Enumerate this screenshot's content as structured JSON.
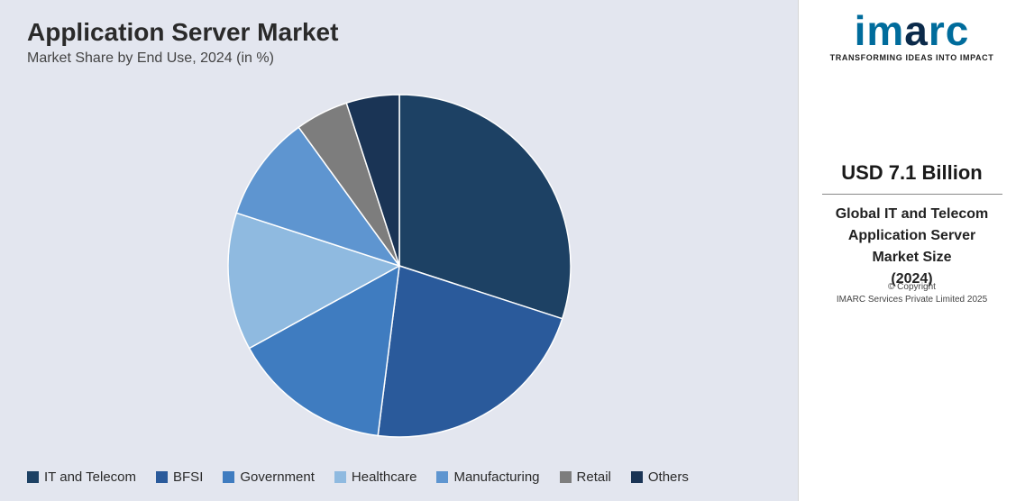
{
  "header": {
    "title": "Application Server Market",
    "subtitle": "Market Share by End Use, 2024 (in %)"
  },
  "chart": {
    "type": "pie",
    "background_color": "#e3e6ef",
    "radius": 190,
    "stroke_color": "#ffffff",
    "stroke_width": 1.5,
    "start_angle_deg": 0,
    "slices": [
      {
        "label": "IT and Telecom",
        "value": 30,
        "color": "#1d4164"
      },
      {
        "label": "BFSI",
        "value": 22,
        "color": "#2a5a9b"
      },
      {
        "label": "Government",
        "value": 15,
        "color": "#3f7cc0"
      },
      {
        "label": "Healthcare",
        "value": 13,
        "color": "#8fbae0"
      },
      {
        "label": "Manufacturing",
        "value": 10,
        "color": "#5e95d0"
      },
      {
        "label": "Retail",
        "value": 5,
        "color": "#7d7d7d"
      },
      {
        "label": "Others",
        "value": 5,
        "color": "#1a3455"
      }
    ]
  },
  "legend": {
    "font_size": 15,
    "text_color": "#2a2a2a",
    "swatch_size": 13
  },
  "side": {
    "logo_text": "imarc",
    "logo_tagline": "TRANSFORMING IDEAS INTO IMPACT",
    "stat_value": "USD 7.1 Billion",
    "stat_line1": "Global IT and Telecom",
    "stat_line2": "Application Server",
    "stat_line3": "Market Size",
    "stat_line4": "(2024)",
    "copyright_line1": "© Copyright",
    "copyright_line2": "IMARC Services Private Limited 2025"
  },
  "colors": {
    "main_bg": "#e3e6ef",
    "side_bg": "#ffffff",
    "logo_primary": "#006c9c",
    "logo_dark": "#0b2a4a"
  }
}
